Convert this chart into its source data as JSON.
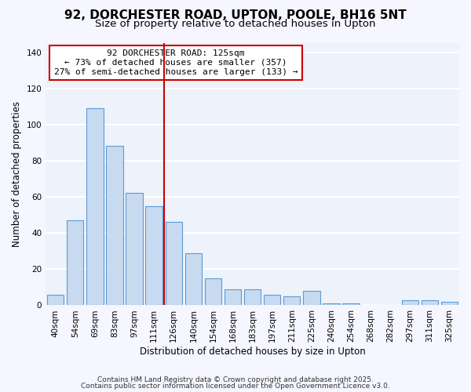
{
  "title": "92, DORCHESTER ROAD, UPTON, POOLE, BH16 5NT",
  "subtitle": "Size of property relative to detached houses in Upton",
  "xlabel": "Distribution of detached houses by size in Upton",
  "ylabel": "Number of detached properties",
  "bar_labels": [
    "40sqm",
    "54sqm",
    "69sqm",
    "83sqm",
    "97sqm",
    "111sqm",
    "126sqm",
    "140sqm",
    "154sqm",
    "168sqm",
    "183sqm",
    "197sqm",
    "211sqm",
    "225sqm",
    "240sqm",
    "254sqm",
    "268sqm",
    "282sqm",
    "297sqm",
    "311sqm",
    "325sqm"
  ],
  "bar_values": [
    6,
    47,
    109,
    88,
    62,
    55,
    46,
    29,
    15,
    9,
    9,
    6,
    5,
    8,
    1,
    1,
    0,
    0,
    3,
    3,
    2
  ],
  "bar_color": "#c8daf0",
  "bar_edge_color": "#5b9bd5",
  "background_color": "#eef2fb",
  "grid_color": "#ffffff",
  "ylim": [
    0,
    145
  ],
  "vline_index": 6,
  "vline_color": "#cc0000",
  "annotation_title": "92 DORCHESTER ROAD: 125sqm",
  "annotation_line1": "← 73% of detached houses are smaller (357)",
  "annotation_line2": "27% of semi-detached houses are larger (133) →",
  "annotation_box_color": "#cc0000",
  "footer1": "Contains HM Land Registry data © Crown copyright and database right 2025.",
  "footer2": "Contains public sector information licensed under the Open Government Licence v3.0.",
  "yticks": [
    0,
    20,
    40,
    60,
    80,
    100,
    120,
    140
  ],
  "title_fontsize": 11,
  "subtitle_fontsize": 9.5,
  "axis_label_fontsize": 8.5,
  "tick_fontsize": 7.5,
  "annotation_fontsize": 8,
  "footer_fontsize": 6.5
}
